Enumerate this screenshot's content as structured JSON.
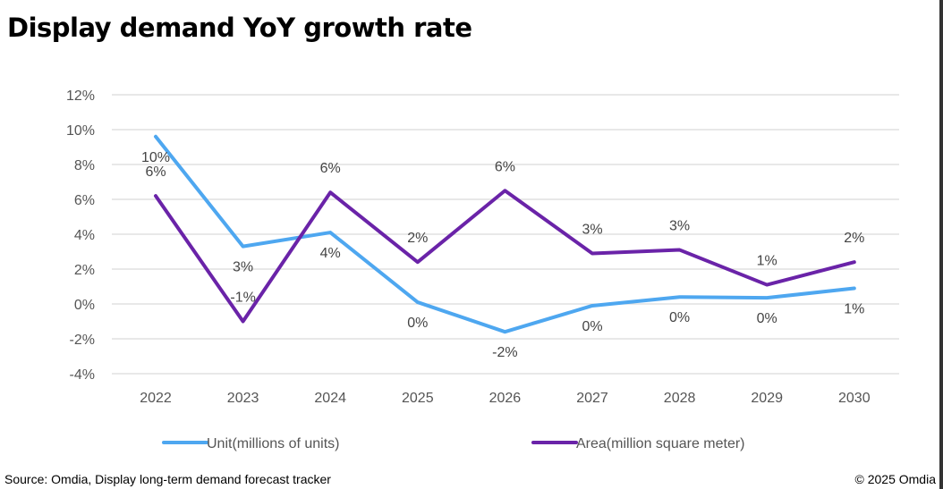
{
  "title": "Display demand YoY growth rate",
  "source": "Source: Omdia, Display long-term demand forecast tracker",
  "copyright": "© 2025 Omdia",
  "chart_data": {
    "type": "line",
    "title": "Display demand YoY growth rate",
    "categories": [
      "2022",
      "2023",
      "2024",
      "2025",
      "2026",
      "2027",
      "2028",
      "2029",
      "2030"
    ],
    "ylim": [
      -4,
      12
    ],
    "yticks": [
      -4,
      -2,
      0,
      2,
      4,
      6,
      8,
      10,
      12
    ],
    "ytick_labels": [
      "-4%",
      "-2%",
      "0%",
      "2%",
      "4%",
      "6%",
      "8%",
      "10%",
      "12%"
    ],
    "grid": true,
    "legend": "bottom",
    "series": [
      {
        "name": "Unit(millions of units)",
        "color": "#4EA7F0",
        "values": [
          9.6,
          3.3,
          4.1,
          0.1,
          -1.6,
          -0.1,
          0.4,
          0.35,
          0.9
        ],
        "labels": [
          "10%",
          "3%",
          "4%",
          "0%",
          "-2%",
          "0%",
          "0%",
          "0%",
          "1%"
        ],
        "label_position": "below"
      },
      {
        "name": "Area(million square meter)",
        "color": "#6A23A8",
        "values": [
          6.2,
          -1.0,
          6.4,
          2.4,
          6.5,
          2.9,
          3.1,
          1.1,
          2.4
        ],
        "labels": [
          "6%",
          "-1%",
          "6%",
          "2%",
          "6%",
          "3%",
          "3%",
          "1%",
          "2%"
        ],
        "label_position": "above"
      }
    ]
  }
}
